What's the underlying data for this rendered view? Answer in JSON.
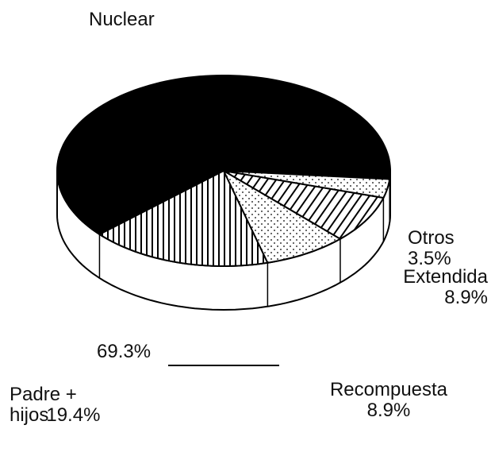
{
  "chart_data": {
    "type": "pie3d",
    "categories": [
      "Nuclear",
      "Padre + hijos",
      "Recompuesta",
      "Extendida",
      "Otros"
    ],
    "values": [
      69.3,
      19.4,
      8.9,
      8.9,
      3.5
    ],
    "value_labels": [
      "69.3%",
      "19.4%",
      "8.9%",
      "8.9%",
      "3.5%"
    ],
    "fills": [
      "solid",
      "vertical-stripes",
      "dots",
      "diagonal-stripes",
      "dots"
    ],
    "color": "#000000"
  }
}
